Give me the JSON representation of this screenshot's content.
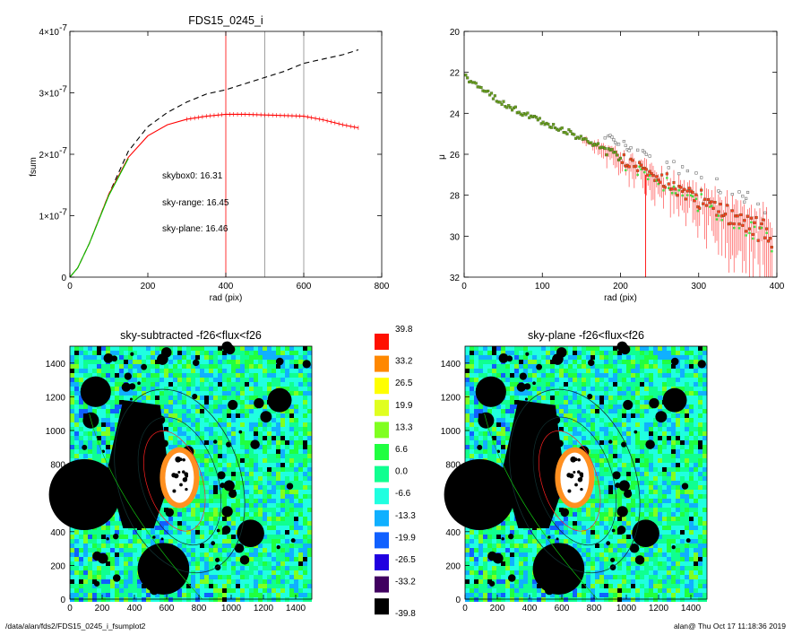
{
  "footer": {
    "path": "/data/alan/fds2/FDS15_0245_i_fsumplot2",
    "stamp": "alan@  Thu Oct 17 11:18:36 2019"
  },
  "colors": {
    "range": "#ff0000",
    "plane": "#00cc00",
    "box": "#000000"
  },
  "chart_data": [
    {
      "type": "line",
      "title": "FDS15_0245_i",
      "xlabel": "rad (pix)",
      "ylabel": "fsum",
      "xlim": [
        0,
        800
      ],
      "ylim": [
        0,
        4e-07
      ],
      "xticks": [
        0,
        200,
        400,
        600,
        800
      ],
      "xtick_labels": [
        "0",
        "200",
        "400",
        "600",
        "800"
      ],
      "ytick_values": [
        0,
        1e-07,
        2e-07,
        3e-07,
        4e-07
      ],
      "ytick_labels": [
        "0",
        "1×10",
        "2×10",
        "3×10",
        "4×10"
      ],
      "ytick_exps": [
        "",
        "-7",
        "-7",
        "-7",
        "-7"
      ],
      "vlines": [
        {
          "x": 400,
          "color": "#ff0000"
        },
        {
          "x": 500,
          "color": "#888888"
        },
        {
          "x": 600,
          "color": "#888888"
        }
      ],
      "annotations": [
        {
          "text": "skybox0: 16.31",
          "color": "#000000"
        },
        {
          "text": "sky-range: 16.45",
          "color": "#ff0000"
        },
        {
          "text": "sky-plane: 16.46",
          "color": "#00cc00"
        }
      ],
      "series": [
        {
          "style": "dashed",
          "color": "#000000",
          "x": [
            0,
            20,
            50,
            100,
            150,
            200,
            250,
            300,
            350,
            400,
            450,
            500,
            550,
            600,
            650,
            700,
            740
          ],
          "y": [
            0,
            1.5e-08,
            5.5e-08,
            1.35e-07,
            2.05e-07,
            2.45e-07,
            2.68e-07,
            2.85e-07,
            2.98e-07,
            3.05e-07,
            3.15e-07,
            3.25e-07,
            3.35e-07,
            3.48e-07,
            3.55e-07,
            3.62e-07,
            3.7e-07
          ]
        },
        {
          "style": "solid",
          "color": "#ff0000",
          "x": [
            0,
            20,
            50,
            100,
            150,
            200,
            250,
            300,
            350,
            400,
            450,
            500,
            550,
            600,
            650,
            700,
            740
          ],
          "y": [
            0,
            1.5e-08,
            5.5e-08,
            1.35e-07,
            1.95e-07,
            2.3e-07,
            2.48e-07,
            2.57e-07,
            2.62e-07,
            2.65e-07,
            2.65e-07,
            2.64e-07,
            2.63e-07,
            2.62e-07,
            2.56e-07,
            2.48e-07,
            2.43e-07
          ]
        },
        {
          "style": "solid",
          "color": "#00cc00",
          "x": [
            0,
            20,
            50,
            100,
            150
          ],
          "y": [
            0,
            1.5e-08,
            5.5e-08,
            1.33e-07,
            1.93e-07
          ]
        }
      ]
    },
    {
      "type": "scatter",
      "xlabel": "rad (pix)",
      "ylabel": "μ",
      "xlim": [
        0,
        400
      ],
      "ylim": [
        32,
        20
      ],
      "xticks": [
        0,
        100,
        200,
        300,
        400
      ],
      "yticks": [
        20,
        22,
        24,
        26,
        28,
        30,
        32
      ],
      "profile": {
        "r": [
          0,
          25,
          50,
          75,
          100,
          125,
          150,
          175,
          200,
          225,
          250,
          275,
          300,
          325,
          350,
          375,
          390
        ],
        "mu": [
          22.2,
          22.9,
          23.5,
          24.0,
          24.4,
          24.8,
          25.2,
          25.6,
          26.1,
          26.6,
          27.1,
          27.5,
          28.0,
          28.4,
          28.9,
          29.3,
          29.6
        ]
      }
    },
    {
      "type": "heatmap",
      "title": "sky-subtracted -f26<flux<f26",
      "xlim": [
        0,
        1500
      ],
      "ylim": [
        0,
        1500
      ],
      "xticks": [
        0,
        200,
        400,
        600,
        800,
        1000,
        1200,
        1400
      ],
      "yticks": [
        0,
        200,
        400,
        600,
        800,
        1000,
        1200,
        1400
      ]
    },
    {
      "type": "heatmap",
      "title": "sky-plane -f26<flux<f26",
      "xlim": [
        0,
        1500
      ],
      "ylim": [
        0,
        1500
      ],
      "xticks": [
        0,
        200,
        400,
        600,
        800,
        1000,
        1200,
        1400
      ],
      "yticks": [
        0,
        200,
        400,
        600,
        800,
        1000,
        1200,
        1400
      ]
    }
  ],
  "colorbar": {
    "labels": [
      "39.8",
      "33.2",
      "26.5",
      "19.9",
      "13.3",
      "6.6",
      "0.0",
      "-6.6",
      "-13.3",
      "-19.9",
      "-26.5",
      "-33.2",
      "-39.8"
    ],
    "colors": [
      "#ff1000",
      "#ff8800",
      "#ffff00",
      "#e0ff20",
      "#80ff20",
      "#20ff40",
      "#10ff90",
      "#20ffe0",
      "#10b0ff",
      "#1060ff",
      "#2000e0",
      "#400060",
      "#000000"
    ]
  },
  "masks": {
    "circles": [
      {
        "x": 160,
        "y": 1230,
        "r": 95
      },
      {
        "x": 1300,
        "y": 1180,
        "r": 75
      },
      {
        "x": 130,
        "y": 1060,
        "r": 50
      },
      {
        "x": 90,
        "y": 620,
        "r": 220
      },
      {
        "x": 580,
        "y": 180,
        "r": 160
      },
      {
        "x": 1120,
        "y": 390,
        "r": 85
      }
    ],
    "galaxy_ellipse": {
      "x": 680,
      "y": 700,
      "rx": 380,
      "ry": 560,
      "rot": 18
    }
  }
}
